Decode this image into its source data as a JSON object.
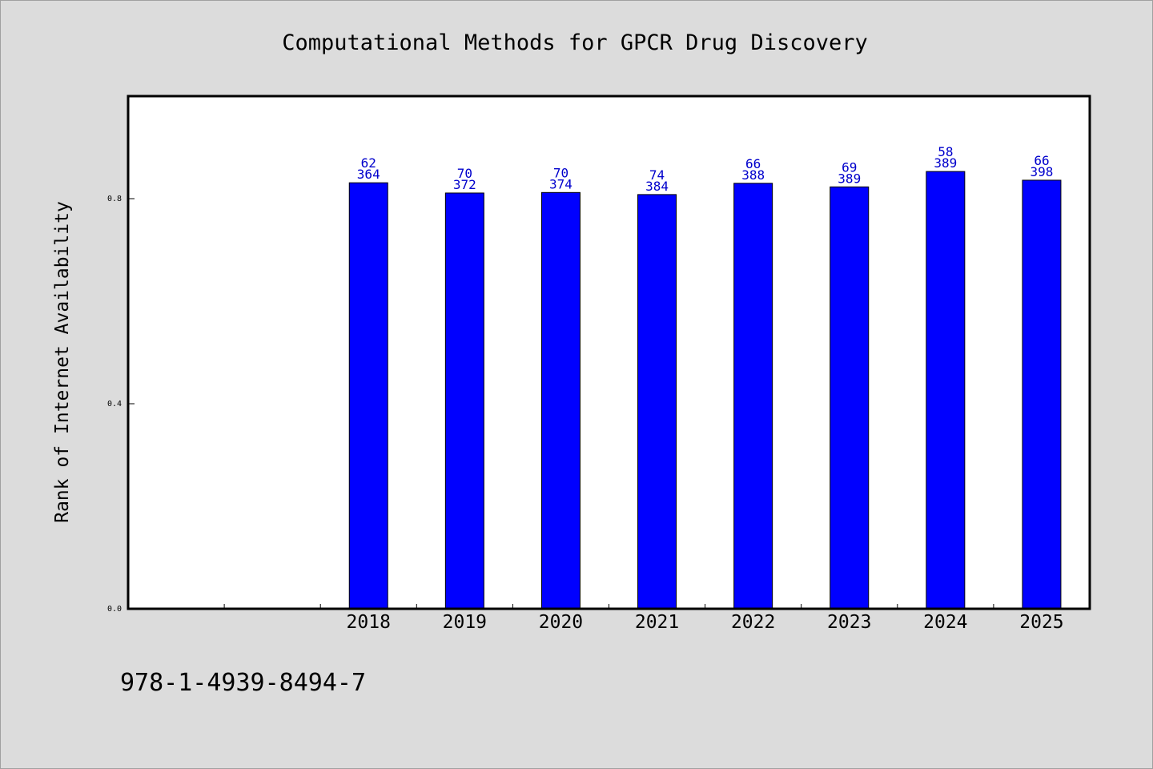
{
  "chart_data": {
    "type": "bar",
    "title": "Computational Methods for GPCR Drug Discovery",
    "xlabel": "",
    "ylabel": "Rank of Internet Availability",
    "categories": [
      "",
      "",
      "2018",
      "2019",
      "2020",
      "2021",
      "2022",
      "2023",
      "2024",
      "2025"
    ],
    "values": [
      null,
      null,
      0.831,
      0.811,
      0.812,
      0.808,
      0.83,
      0.823,
      0.853,
      0.836
    ],
    "labels_top": [
      "",
      "",
      "62",
      "70",
      "70",
      "74",
      "66",
      "69",
      "58",
      "66"
    ],
    "labels_bottom": [
      "",
      "",
      "364",
      "372",
      "374",
      "384",
      "388",
      "389",
      "389",
      "398"
    ],
    "ylim": [
      0,
      1.0
    ],
    "yticks": [
      "0.0",
      "0.4",
      "0.8"
    ],
    "ytick_values": [
      0.0,
      0.4,
      0.8
    ],
    "grid": false,
    "bar_color": "#0000ff",
    "label_color": "#0000cc"
  },
  "footer": {
    "isbn": "978-1-4939-8494-7"
  }
}
